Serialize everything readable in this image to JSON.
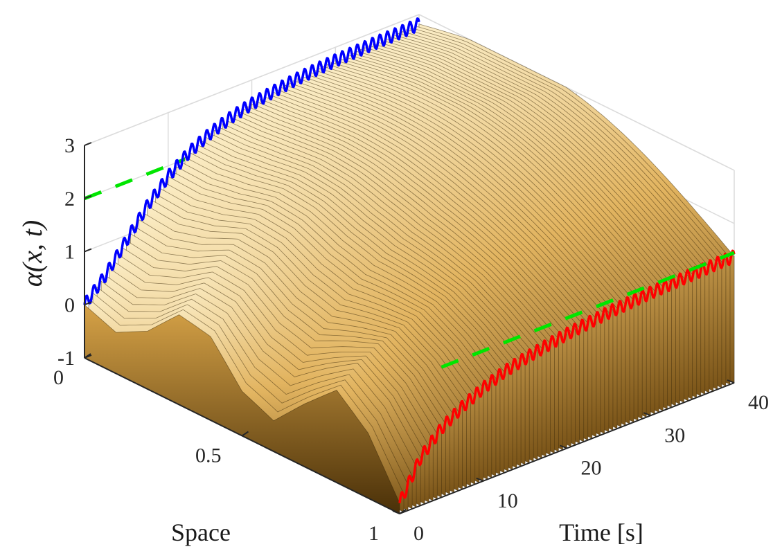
{
  "chart_data": {
    "type": "surface3d",
    "title": "",
    "xlabel": "Space",
    "ylabel": "Time [s]",
    "zlabel": "α(x, t)",
    "xlim": [
      0,
      1
    ],
    "ylim": [
      0,
      40
    ],
    "zlim": [
      -1,
      3
    ],
    "x_ticks": [
      "0",
      "0.5",
      "1"
    ],
    "y_ticks": [
      "0",
      "10",
      "20",
      "30",
      "40"
    ],
    "z_ticks": [
      "-1",
      "0",
      "1",
      "2",
      "3"
    ],
    "grid": true,
    "surface_color": "#d9a94a",
    "series": [
      {
        "role": "boundary at x = 0",
        "color": "#0000ff",
        "t": [
          0,
          2.5,
          5,
          7.5,
          10,
          12.5,
          15,
          17.5,
          20,
          22.5,
          25,
          27.5,
          30,
          32.5,
          35,
          37.5,
          40
        ],
        "alpha": [
          0.0,
          0.4,
          0.9,
          1.4,
          1.8,
          2.1,
          2.3,
          2.45,
          2.55,
          2.62,
          2.68,
          2.72,
          2.75,
          2.77,
          2.79,
          2.8,
          2.82
        ]
      },
      {
        "role": "boundary at x = 1",
        "color": "#ff0000",
        "t": [
          0,
          2.5,
          5,
          7.5,
          10,
          12.5,
          15,
          17.5,
          20,
          22.5,
          25,
          27.5,
          30,
          32.5,
          35,
          37.5,
          40
        ],
        "alpha": [
          -0.8,
          -0.1,
          0.3,
          0.55,
          0.75,
          0.9,
          1.0,
          1.08,
          1.15,
          1.2,
          1.25,
          1.28,
          1.31,
          1.33,
          1.35,
          1.37,
          1.38
        ]
      },
      {
        "role": "reference level",
        "color": "#00e600",
        "style": "dashed",
        "value": 2.0
      }
    ],
    "profile_at_t0": {
      "x": [
        0,
        0.1,
        0.2,
        0.3,
        0.4,
        0.5,
        0.6,
        0.7,
        0.8,
        0.9,
        1.0
      ],
      "alpha": [
        0.0,
        -0.3,
        -0.05,
        0.5,
        0.35,
        -0.4,
        -0.65,
        0.0,
        0.6,
        0.15,
        -0.8
      ]
    }
  }
}
